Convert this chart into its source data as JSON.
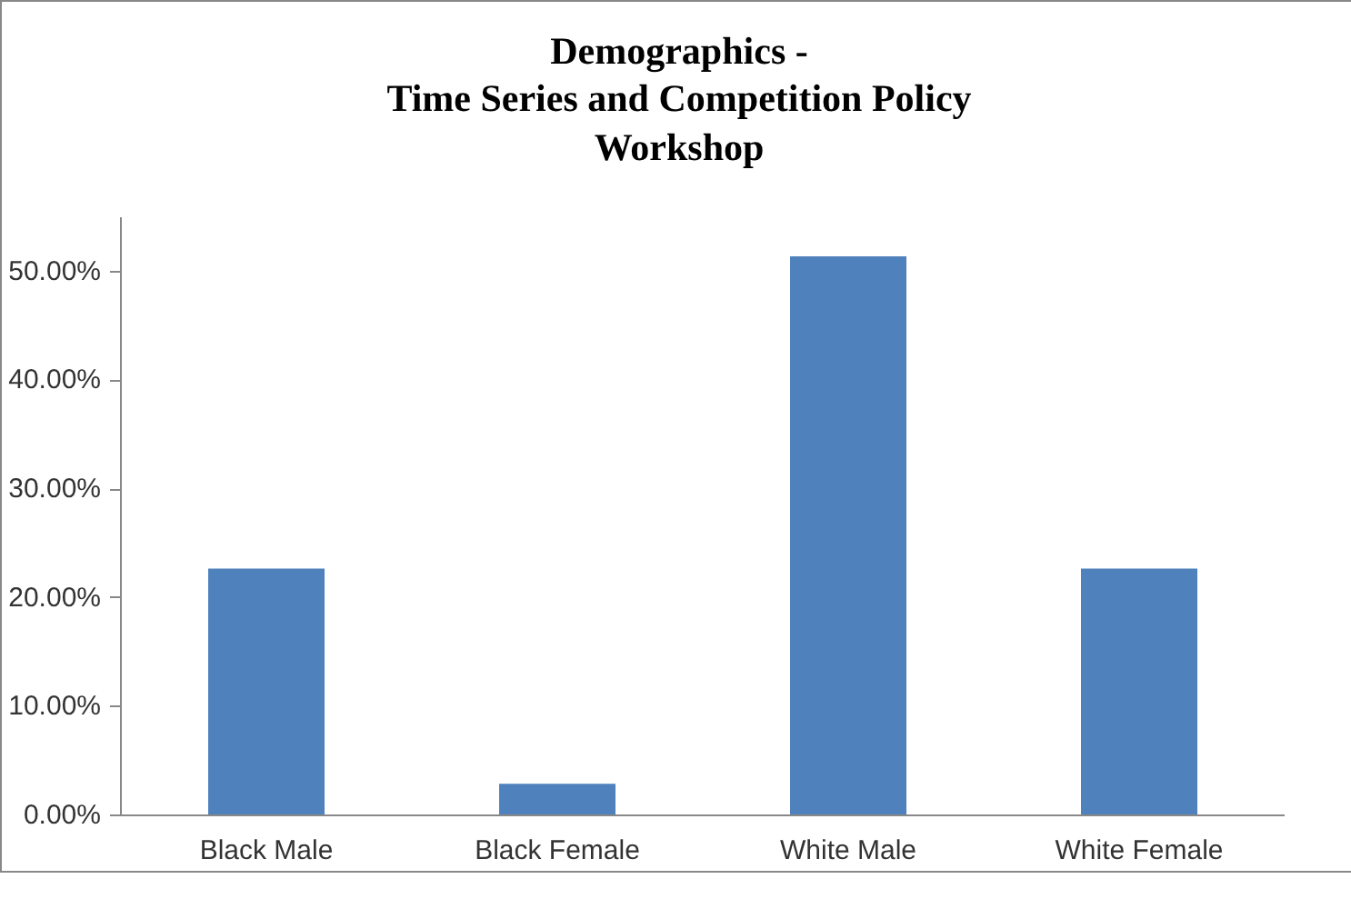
{
  "chart_data": {
    "type": "bar",
    "title": "Demographics -\nTime Series and Competition Policy\nWorkshop",
    "categories": [
      "Black Male",
      "Black Female",
      "White Male",
      "White Female"
    ],
    "values": [
      22.7,
      2.9,
      51.4,
      22.7
    ],
    "color": "#4f81bd",
    "ylim": [
      0,
      55
    ],
    "yticks": [
      {
        "value": 0,
        "label": "0.00%"
      },
      {
        "value": 10,
        "label": "10.00%"
      },
      {
        "value": 20,
        "label": "20.00%"
      },
      {
        "value": 30,
        "label": "30.00%"
      },
      {
        "value": 40,
        "label": "40.00%"
      },
      {
        "value": 50,
        "label": "50.00%"
      }
    ],
    "grid": false
  }
}
